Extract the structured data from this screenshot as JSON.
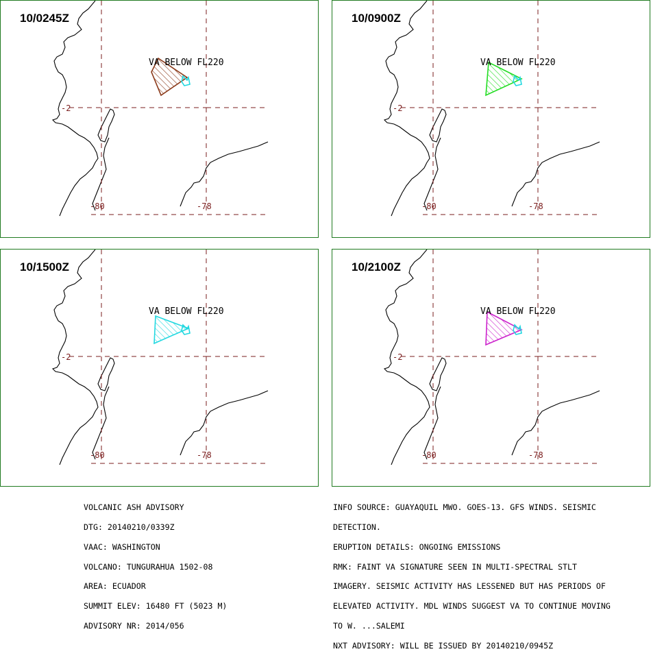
{
  "panels": [
    {
      "time": "10/0245Z",
      "va_label": "VA BELOW FL220",
      "polygon_color": "#8b3a1a",
      "lat_label": "-2",
      "lon_labels": [
        "-80",
        "-78"
      ]
    },
    {
      "time": "10/0900Z",
      "va_label": "VA BELOW FL220",
      "polygon_color": "#22dd22",
      "lat_label": "-2",
      "lon_labels": [
        "-80",
        "-78"
      ]
    },
    {
      "time": "10/1500Z",
      "va_label": "VA BELOW FL220",
      "polygon_color": "#22d8e0",
      "lat_label": "-2",
      "lon_labels": [
        "-80",
        "-78"
      ]
    },
    {
      "time": "10/2100Z",
      "va_label": "VA BELOW FL220",
      "polygon_color": "#cc22cc",
      "lat_label": "-2",
      "lon_labels": [
        "-80",
        "-78"
      ]
    }
  ],
  "colors": {
    "frame": "#1f7a1f",
    "grid": "#7a1c1c",
    "volcano_marker": "#22d8e0",
    "coastline": "#000000"
  },
  "advisory_left": [
    "VOLCANIC ASH ADVISORY",
    "DTG: 20140210/0339Z",
    "VAAC: WASHINGTON",
    "VOLCANO: TUNGURAHUA 1502-08",
    "AREA: ECUADOR",
    "SUMMIT ELEV: 16480 FT (5023 M)",
    "ADVISORY NR: 2014/056"
  ],
  "advisory_right": [
    "INFO SOURCE: GUAYAQUIL MWO. GOES-13. GFS WINDS. SEISMIC",
    "DETECTION.",
    "ERUPTION DETAILS: ONGOING EMISSIONS",
    "RMK: FAINT VA SIGNATURE SEEN IN MULTI-SPECTRAL STLT",
    "IMAGERY. SEISMIC ACTIVITY HAS LESSENED BUT HAS PERIODS OF",
    "ELEVATED ACTIVITY. MDL WINDS SUGGEST VA TO CONTINUE MOVING",
    "TO W. ...SALEMI",
    "NXT ADVISORY: WILL BE ISSUED BY 20140210/0945Z"
  ]
}
